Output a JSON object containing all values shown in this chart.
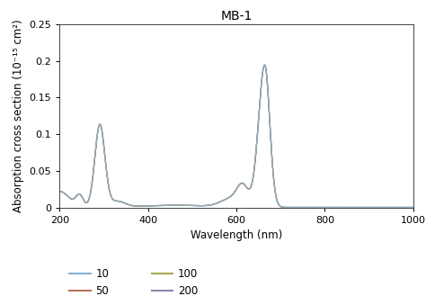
{
  "title": "MB-1",
  "xlabel": "Wavelength (nm)",
  "ylabel": "Absorption cross section (10⁻¹⁵ cm²)",
  "xlim": [
    200,
    1000
  ],
  "ylim": [
    0,
    0.25
  ],
  "xticks": [
    200,
    400,
    600,
    800,
    1000
  ],
  "yticks": [
    0,
    0.05,
    0.1,
    0.15,
    0.2,
    0.25
  ],
  "ytick_labels": [
    "0",
    "0.05",
    "0.1",
    "0.15",
    "0.2",
    "0.25"
  ],
  "series": [
    {
      "label": "10",
      "color": "#8ab0c8"
    },
    {
      "label": "50",
      "color": "#b87060"
    },
    {
      "label": "100",
      "color": "#a8a855"
    },
    {
      "label": "200",
      "color": "#8888aa"
    }
  ],
  "bg_color": "#ffffff",
  "title_fontsize": 10,
  "label_fontsize": 8.5,
  "tick_fontsize": 8,
  "legend_fontsize": 8.5,
  "linewidth": 0.9
}
